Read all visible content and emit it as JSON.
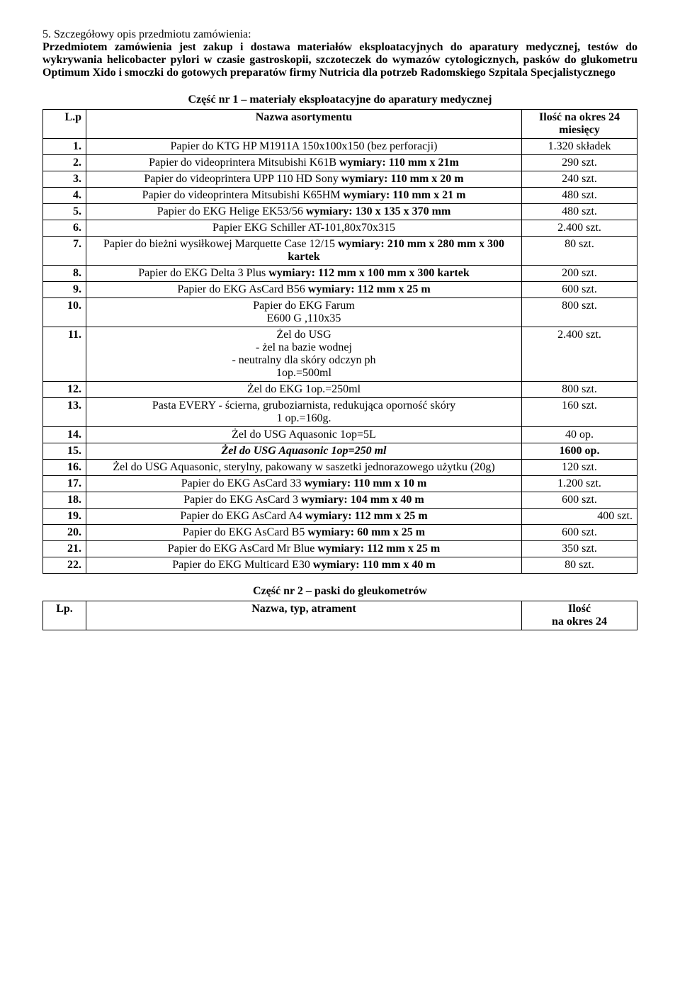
{
  "section_number": "5.",
  "section_title": "Szczegółowy opis przedmiotu zamówienia:",
  "intro": "Przedmiotem zamówienia jest zakup i dostawa materiałów eksploatacyjnych do aparatury medycznej, testów do wykrywania helicobacter pylori w czasie gastroskopii, szczoteczek do wymazów cytologicznych, pasków do glukometru Optimum Xido i smoczki do gotowych preparatów firmy Nutricia dla potrzeb Radomskiego Szpitala Specjalistycznego",
  "part1": {
    "title": "Część nr 1 – materiały eksploatacyjne do aparatury medycznej",
    "header_lp": "L.p",
    "header_name": "Nazwa asortymentu",
    "header_qty": "Ilość na okres 24 miesięcy",
    "rows": [
      {
        "lp": "1.",
        "name_plain": "Papier do KTG HP M1911A 150x100x150 (bez perforacji)",
        "name_bold": "",
        "qty": "1.320 składek"
      },
      {
        "lp": "2.",
        "name_plain": "Papier do videoprintera Mitsubishi K61B ",
        "name_bold": "wymiary: 110 mm x 21m",
        "qty": "290 szt."
      },
      {
        "lp": "3.",
        "name_plain": "Papier do videoprintera UPP 110 HD Sony ",
        "name_bold": "wymiary: 110 mm x 20 m",
        "qty": "240 szt."
      },
      {
        "lp": "4.",
        "name_plain": "Papier do videoprintera Mitsubishi K65HM ",
        "name_bold": "wymiary: 110 mm x 21 m",
        "qty": "480 szt."
      },
      {
        "lp": "5.",
        "name_plain": "Papier do EKG Helige EK53/56 ",
        "name_bold": "wymiary: 130 x 135 x 370 mm",
        "qty": "480 szt."
      },
      {
        "lp": "6.",
        "name_plain": "Papier EKG Schiller AT-101,80x70x315",
        "name_bold": "",
        "qty": "2.400 szt."
      },
      {
        "lp": "7.",
        "name_plain": "Papier do bieżni wysiłkowej Marquette Case 12/15 ",
        "name_bold": "wymiary: 210 mm x 280 mm x 300 kartek",
        "qty": "80 szt."
      },
      {
        "lp": "8.",
        "name_plain": "Papier do EKG Delta 3 Plus ",
        "name_bold": "wymiary: 112 mm x 100 mm x 300 kartek",
        "qty": "200 szt."
      },
      {
        "lp": "9.",
        "name_plain": "Papier do EKG AsCard B56 ",
        "name_bold": "wymiary: 112 mm x 25 m",
        "qty": "600 szt."
      },
      {
        "lp": "10.",
        "name_plain": "Papier do EKG Farum\nE600 G ,110x35",
        "name_bold": "",
        "qty": "800 szt."
      },
      {
        "lp": "11.",
        "name_plain": "Żel do USG\n- żel na bazie wodnej\n- neutralny dla skóry odczyn ph\n1op.=500ml",
        "name_bold": "",
        "qty": "2.400 szt."
      },
      {
        "lp": "12.",
        "name_plain": "Żel do EKG 1op.=250ml",
        "name_bold": "",
        "qty": "800 szt."
      },
      {
        "lp": "13.",
        "name_plain": "Pasta EVERY - ścierna, gruboziarnista, redukująca oporność skóry\n1 op.=160g.",
        "name_bold": "",
        "qty": "160 szt."
      },
      {
        "lp": "14.",
        "name_plain": "Żel do USG Aquasonic 1op=5L",
        "name_bold": "",
        "qty": "40 op."
      },
      {
        "lp": "15.",
        "name_italic_bold": "Żel do USG Aquasonic 1op=250 ml",
        "qty_bold": "1600 op."
      },
      {
        "lp": "16.",
        "name_plain": "Żel do USG Aquasonic, sterylny, pakowany w saszetki jednorazowego użytku (20g)",
        "name_bold": "",
        "qty": "120 szt."
      },
      {
        "lp": "17.",
        "name_plain": "Papier do EKG AsCard 33 ",
        "name_bold": "wymiary: 110 mm x 10 m",
        "qty": "1.200 szt."
      },
      {
        "lp": "18.",
        "name_plain": "Papier do EKG AsCard 3 ",
        "name_bold": "wymiary: 104 mm x 40 m",
        "qty": "600 szt."
      },
      {
        "lp": "19.",
        "name_plain": "Papier do EKG AsCard A4  ",
        "name_bold": "wymiary: 112 mm x 25 m",
        "qty_right": "400 szt."
      },
      {
        "lp": "20.",
        "name_plain": "Papier do EKG AsCard B5  ",
        "name_bold": "wymiary: 60 mm x 25 m",
        "qty": "600 szt."
      },
      {
        "lp": "21.",
        "name_plain": "Papier do EKG AsCard Mr Blue  ",
        "name_bold": "wymiary: 112 mm x 25 m",
        "qty": "350 szt."
      },
      {
        "lp": "22.",
        "name_plain": "Papier do EKG Multicard E30  ",
        "name_bold": "wymiary: 110 mm x 40 m",
        "qty": "80 szt."
      }
    ]
  },
  "part2": {
    "title": "Część nr 2 – paski do gleukometrów",
    "header_lp": "Lp.",
    "header_name": "Nazwa, typ, atrament",
    "header_qty": "Ilość\nna okres 24"
  }
}
